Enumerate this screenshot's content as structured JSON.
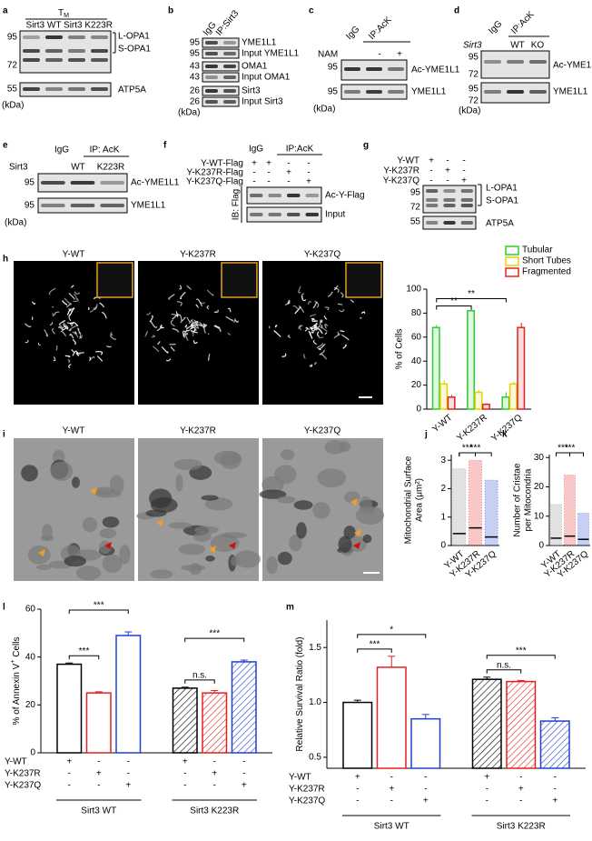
{
  "panel_letters": {
    "a": "a",
    "b": "b",
    "c": "c",
    "d": "d",
    "e": "e",
    "f": "f",
    "g": "g",
    "h": "h",
    "i": "i",
    "j": "j",
    "k": "k",
    "l": "l",
    "m": "m"
  },
  "blots": {
    "a": {
      "tm": {
        "main": "T",
        "sub": "M"
      },
      "lanes": [
        "Sirt3 WT",
        "Sirt3 K223R"
      ],
      "markers": [
        "95",
        "72",
        "55"
      ],
      "bands": [
        "L-OPA1",
        "S-OPA1",
        "ATP5A"
      ],
      "unit": "(kDa)"
    },
    "b": {
      "ip": [
        "IgG",
        "IP:Sirt3"
      ],
      "markers": [
        "95",
        "95",
        "43",
        "43",
        "26",
        "26"
      ],
      "bands": [
        "YME1L1",
        "Input YME1L1",
        "OMA1",
        "Input OMA1",
        "Sirt3",
        "Input Sirt3"
      ],
      "unit": "(kDa)"
    },
    "c": {
      "ip": [
        "IgG",
        "IP:AcK"
      ],
      "treatment": "NAM",
      "signs": [
        "-",
        "+"
      ],
      "markers": [
        "95",
        "95"
      ],
      "bands": [
        "Ac-YME1L1",
        "YME1L1"
      ],
      "unit": "(kDa)"
    },
    "d": {
      "ip": [
        "IgG",
        "IP:AcK"
      ],
      "gene": "Sirt3",
      "lanes": [
        "WT",
        "KO"
      ],
      "markers": [
        "95",
        "72",
        "95",
        "72"
      ],
      "bands": [
        "Ac-YME1L1",
        "YME1L1"
      ],
      "unit": "(kDa)"
    },
    "e": {
      "ip": [
        "IgG",
        "IP: AcK"
      ],
      "gene": "Sirt3",
      "lanes": [
        "WT",
        "K223R"
      ],
      "markers": [
        "95",
        "95"
      ],
      "bands": [
        "Ac-YME1L1",
        "YME1L1"
      ],
      "unit": "(kDa)"
    },
    "f": {
      "rows": [
        {
          "name": "Y-WT-Flag",
          "signs": [
            "+",
            "+",
            "-",
            "-"
          ]
        },
        {
          "name": "Y-K237R-Flag",
          "signs": [
            "-",
            "-",
            "+",
            "-"
          ]
        },
        {
          "name": "Y-K237Q-Flag",
          "signs": [
            "-",
            "-",
            "-",
            "+"
          ]
        }
      ],
      "ip": [
        "IgG",
        "IP:AcK"
      ],
      "ib": "IB: Flag",
      "bands": [
        "Ac-Y-Flag",
        "Input"
      ]
    },
    "g": {
      "rows": [
        {
          "name": "Y-WT",
          "signs": [
            "+",
            "-",
            "-"
          ]
        },
        {
          "name": "Y-K237R",
          "signs": [
            "-",
            "+",
            "-"
          ]
        },
        {
          "name": "Y-K237Q",
          "signs": [
            "-",
            "-",
            "+"
          ]
        }
      ],
      "markers": [
        "95",
        "72",
        "55"
      ],
      "bands": [
        "L-OPA1",
        "S-OPA1",
        "ATP5A"
      ]
    }
  },
  "images": {
    "h": [
      "Y-WT",
      "Y-K237R",
      "Y-K237Q"
    ],
    "i": [
      "Y-WT",
      "Y-K237R",
      "Y-K237Q"
    ]
  },
  "chart_data": [
    {
      "type": "grouped_bar",
      "ylabel": "% of Cells",
      "categories": [
        "Y-WT",
        "Y-K237R",
        "Y-K237Q"
      ],
      "series": [
        {
          "name": "Tubular",
          "color": "#2ecc2e",
          "values": [
            68,
            82,
            10
          ],
          "errors": [
            2,
            2,
            4
          ]
        },
        {
          "name": "Short Tubes",
          "color": "#e6d000",
          "values": [
            21,
            14,
            21
          ],
          "errors": [
            3,
            2,
            2
          ]
        },
        {
          "name": "Fragmented",
          "color": "#e32020",
          "values": [
            10,
            4,
            68
          ],
          "errors": [
            2,
            1,
            4
          ]
        }
      ],
      "ylim": [
        0,
        100
      ],
      "yticks": [
        0,
        20,
        40,
        60,
        80,
        100
      ],
      "significance": [
        "**",
        "**"
      ],
      "legend": "top-right"
    },
    {
      "type": "strip",
      "ylabel": [
        "Mitochondrial Surface",
        "Area (μm²)"
      ],
      "categories": [
        "Y-WT",
        "Y-K237R",
        "Y-K237Q"
      ],
      "colors": [
        "#888888",
        "#e32020",
        "#2040d0"
      ],
      "values": [
        0.42,
        0.62,
        0.3
      ],
      "min": [
        0,
        0,
        0
      ],
      "max": [
        2.7,
        3.0,
        2.3
      ],
      "ylim": [
        0,
        3.2
      ],
      "yticks": [
        0,
        1,
        2,
        3
      ],
      "significance": [
        "***",
        "***"
      ]
    },
    {
      "type": "strip",
      "ylabel": [
        "Number of Cristae",
        "per Mitocondria"
      ],
      "categories": [
        "Y-WT",
        "Y-K237R",
        "Y-K237Q"
      ],
      "colors": [
        "#888888",
        "#e32020",
        "#2040d0"
      ],
      "values": [
        2.5,
        3.2,
        2.1
      ],
      "min": [
        0,
        0,
        0
      ],
      "max": [
        14,
        24,
        11
      ],
      "ylim": [
        0,
        31
      ],
      "yticks": [
        0,
        10,
        20,
        30
      ],
      "significance": [
        "***",
        "***"
      ]
    },
    {
      "type": "bar",
      "ylabel": {
        "text": "% of Annexin V",
        "sup": "+",
        "after": " Cells"
      },
      "values": [
        37,
        25,
        49,
        27,
        25,
        38
      ],
      "errors": [
        0.5,
        0.5,
        1.5,
        0.4,
        1,
        0.7
      ],
      "colors": [
        "#000000",
        "#e32020",
        "#2040d0",
        "#000000",
        "#e32020",
        "#2040d0"
      ],
      "hatch": [
        false,
        false,
        false,
        true,
        true,
        true
      ],
      "ylim": [
        0,
        60
      ],
      "yticks": [
        0,
        20,
        40,
        60
      ],
      "conditions": [
        {
          "name": "Y-WT",
          "signs": [
            "+",
            "-",
            "-",
            "+",
            "-",
            "-"
          ]
        },
        {
          "name": "Y-K237R",
          "signs": [
            "-",
            "+",
            "-",
            "-",
            "+",
            "-"
          ]
        },
        {
          "name": "Y-K237Q",
          "signs": [
            "-",
            "-",
            "+",
            "-",
            "-",
            "+"
          ]
        }
      ],
      "groups": [
        "Sirt3 WT",
        "Sirt3 K223R"
      ],
      "significance": [
        "***",
        "***",
        "***",
        "n.s."
      ]
    },
    {
      "type": "bar",
      "ylabel": {
        "text": "Relative Survival Ratio (fold)"
      },
      "values": [
        1.0,
        1.32,
        0.85,
        1.21,
        1.19,
        0.83
      ],
      "errors": [
        0.02,
        0.1,
        0.04,
        0.02,
        0.01,
        0.03
      ],
      "colors": [
        "#000000",
        "#e32020",
        "#2040d0",
        "#000000",
        "#e32020",
        "#2040d0"
      ],
      "hatch": [
        false,
        false,
        false,
        true,
        true,
        true
      ],
      "ylim": [
        0.4,
        1.75
      ],
      "yticks": [
        {
          "value": 0.5,
          "label": "0.5"
        },
        {
          "value": 1.0,
          "label": "1.0"
        },
        {
          "value": 1.5,
          "label": "1.5"
        }
      ],
      "conditions": [
        {
          "name": "Y-WT",
          "signs": [
            "+",
            "-",
            "-",
            "+",
            "-",
            "-"
          ]
        },
        {
          "name": "Y-K237R",
          "signs": [
            "-",
            "+",
            "-",
            "-",
            "+",
            "-"
          ]
        },
        {
          "name": "Y-K237Q",
          "signs": [
            "-",
            "-",
            "+",
            "-",
            "-",
            "+"
          ]
        }
      ],
      "groups": [
        "Sirt3 WT",
        "Sirt3 K223R"
      ],
      "significance": [
        "***",
        "*",
        "n.s.",
        "***"
      ]
    }
  ]
}
